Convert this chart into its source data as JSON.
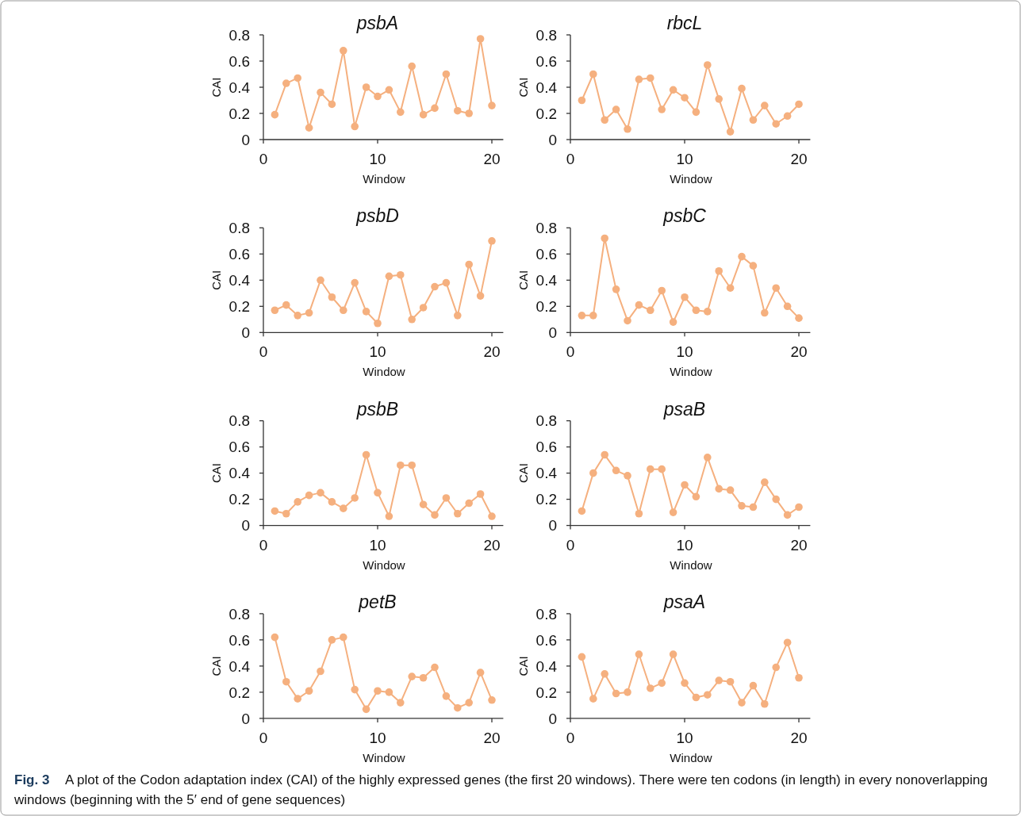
{
  "chart_data": [
    {
      "type": "line",
      "title": "psbA",
      "xlabel": "Window",
      "ylabel": "CAI",
      "x": [
        1,
        2,
        3,
        4,
        5,
        6,
        7,
        8,
        9,
        10,
        11,
        12,
        13,
        14,
        15,
        16,
        17,
        18,
        19,
        20
      ],
      "xlim": [
        0,
        21
      ],
      "xticks": [
        0,
        10,
        20
      ],
      "ylim": [
        0,
        0.8
      ],
      "yticks": [
        0,
        0.2,
        0.4,
        0.6,
        0.8
      ],
      "marker": "circle",
      "line_style": "solid",
      "grid": false,
      "series": [
        {
          "color": "#f5b07f",
          "values": [
            0.19,
            0.43,
            0.47,
            0.09,
            0.36,
            0.27,
            0.68,
            0.1,
            0.4,
            0.33,
            0.38,
            0.21,
            0.56,
            0.19,
            0.24,
            0.5,
            0.22,
            0.2,
            0.77,
            0.26
          ]
        }
      ]
    },
    {
      "type": "line",
      "title": "rbcL",
      "xlabel": "Window",
      "ylabel": "CAI",
      "x": [
        1,
        2,
        3,
        4,
        5,
        6,
        7,
        8,
        9,
        10,
        11,
        12,
        13,
        14,
        15,
        16,
        17,
        18,
        19,
        20
      ],
      "xlim": [
        0,
        21
      ],
      "xticks": [
        0,
        10,
        20
      ],
      "ylim": [
        0,
        0.8
      ],
      "yticks": [
        0,
        0.2,
        0.4,
        0.6,
        0.8
      ],
      "marker": "circle",
      "line_style": "solid",
      "grid": false,
      "series": [
        {
          "color": "#f5b07f",
          "values": [
            0.3,
            0.5,
            0.15,
            0.23,
            0.08,
            0.46,
            0.47,
            0.23,
            0.38,
            0.32,
            0.21,
            0.57,
            0.31,
            0.06,
            0.39,
            0.15,
            0.26,
            0.12,
            0.18,
            0.27
          ]
        }
      ]
    },
    {
      "type": "line",
      "title": "psbD",
      "xlabel": "Window",
      "ylabel": "CAI",
      "x": [
        1,
        2,
        3,
        4,
        5,
        6,
        7,
        8,
        9,
        10,
        11,
        12,
        13,
        14,
        15,
        16,
        17,
        18,
        19,
        20
      ],
      "xlim": [
        0,
        21
      ],
      "xticks": [
        0,
        10,
        20
      ],
      "ylim": [
        0,
        0.8
      ],
      "yticks": [
        0,
        0.2,
        0.4,
        0.6,
        0.8
      ],
      "marker": "circle",
      "line_style": "solid",
      "grid": false,
      "series": [
        {
          "color": "#f5b07f",
          "values": [
            0.17,
            0.21,
            0.13,
            0.15,
            0.4,
            0.27,
            0.17,
            0.38,
            0.16,
            0.07,
            0.43,
            0.44,
            0.1,
            0.19,
            0.35,
            0.38,
            0.13,
            0.52,
            0.28,
            0.7
          ]
        }
      ]
    },
    {
      "type": "line",
      "title": "psbC",
      "xlabel": "Window",
      "ylabel": "CAI",
      "x": [
        1,
        2,
        3,
        4,
        5,
        6,
        7,
        8,
        9,
        10,
        11,
        12,
        13,
        14,
        15,
        16,
        17,
        18,
        19,
        20
      ],
      "xlim": [
        0,
        21
      ],
      "xticks": [
        0,
        10,
        20
      ],
      "ylim": [
        0,
        0.8
      ],
      "yticks": [
        0,
        0.2,
        0.4,
        0.6,
        0.8
      ],
      "marker": "circle",
      "line_style": "solid",
      "grid": false,
      "series": [
        {
          "color": "#f5b07f",
          "values": [
            0.13,
            0.13,
            0.72,
            0.33,
            0.09,
            0.21,
            0.17,
            0.32,
            0.08,
            0.27,
            0.17,
            0.16,
            0.47,
            0.34,
            0.58,
            0.51,
            0.15,
            0.34,
            0.2,
            0.11
          ]
        }
      ]
    },
    {
      "type": "line",
      "title": "psbB",
      "xlabel": "Window",
      "ylabel": "CAI",
      "x": [
        1,
        2,
        3,
        4,
        5,
        6,
        7,
        8,
        9,
        10,
        11,
        12,
        13,
        14,
        15,
        16,
        17,
        18,
        19,
        20
      ],
      "xlim": [
        0,
        21
      ],
      "xticks": [
        0,
        10,
        20
      ],
      "ylim": [
        0,
        0.8
      ],
      "yticks": [
        0,
        0.2,
        0.4,
        0.6,
        0.8
      ],
      "marker": "circle",
      "line_style": "solid",
      "grid": false,
      "series": [
        {
          "color": "#f5b07f",
          "values": [
            0.11,
            0.09,
            0.18,
            0.23,
            0.25,
            0.18,
            0.13,
            0.21,
            0.54,
            0.25,
            0.07,
            0.46,
            0.46,
            0.16,
            0.08,
            0.21,
            0.09,
            0.17,
            0.24,
            0.07
          ]
        }
      ]
    },
    {
      "type": "line",
      "title": "psaB",
      "xlabel": "Window",
      "ylabel": "CAI",
      "x": [
        1,
        2,
        3,
        4,
        5,
        6,
        7,
        8,
        9,
        10,
        11,
        12,
        13,
        14,
        15,
        16,
        17,
        18,
        19,
        20
      ],
      "xlim": [
        0,
        21
      ],
      "xticks": [
        0,
        10,
        20
      ],
      "ylim": [
        0,
        0.8
      ],
      "yticks": [
        0,
        0.2,
        0.4,
        0.6,
        0.8
      ],
      "marker": "circle",
      "line_style": "solid",
      "grid": false,
      "series": [
        {
          "color": "#f5b07f",
          "values": [
            0.11,
            0.4,
            0.54,
            0.42,
            0.38,
            0.09,
            0.43,
            0.43,
            0.1,
            0.31,
            0.22,
            0.52,
            0.28,
            0.27,
            0.15,
            0.14,
            0.33,
            0.2,
            0.08,
            0.14
          ]
        }
      ]
    },
    {
      "type": "line",
      "title": "petB",
      "xlabel": "Window",
      "ylabel": "CAI",
      "x": [
        1,
        2,
        3,
        4,
        5,
        6,
        7,
        8,
        9,
        10,
        11,
        12,
        13,
        14,
        15,
        16,
        17,
        18,
        19,
        20
      ],
      "xlim": [
        0,
        21
      ],
      "xticks": [
        0,
        10,
        20
      ],
      "ylim": [
        0,
        0.8
      ],
      "yticks": [
        0,
        0.2,
        0.4,
        0.6,
        0.8
      ],
      "marker": "circle",
      "line_style": "solid",
      "grid": false,
      "series": [
        {
          "color": "#f5b07f",
          "values": [
            0.62,
            0.28,
            0.15,
            0.21,
            0.36,
            0.6,
            0.62,
            0.22,
            0.07,
            0.21,
            0.2,
            0.12,
            0.32,
            0.31,
            0.39,
            0.17,
            0.08,
            0.12,
            0.35,
            0.14
          ]
        }
      ]
    },
    {
      "type": "line",
      "title": "psaA",
      "xlabel": "Window",
      "ylabel": "CAI",
      "x": [
        1,
        2,
        3,
        4,
        5,
        6,
        7,
        8,
        9,
        10,
        11,
        12,
        13,
        14,
        15,
        16,
        17,
        18,
        19,
        20
      ],
      "xlim": [
        0,
        21
      ],
      "xticks": [
        0,
        10,
        20
      ],
      "ylim": [
        0,
        0.8
      ],
      "yticks": [
        0,
        0.2,
        0.4,
        0.6,
        0.8
      ],
      "marker": "circle",
      "line_style": "solid",
      "grid": false,
      "series": [
        {
          "color": "#f5b07f",
          "values": [
            0.47,
            0.15,
            0.34,
            0.19,
            0.2,
            0.49,
            0.23,
            0.27,
            0.49,
            0.27,
            0.16,
            0.18,
            0.29,
            0.28,
            0.12,
            0.25,
            0.11,
            0.39,
            0.58,
            0.31
          ]
        }
      ],
      "annotations": [
        "Fig. 3",
        "A plot of the Codon adaptation index (CAI) of the highly expressed genes (the first 20 windows). There were ten codons (in length) in every nonoverlapping windows (beginning with the 5′ end of gene sequences)"
      ]
    }
  ]
}
